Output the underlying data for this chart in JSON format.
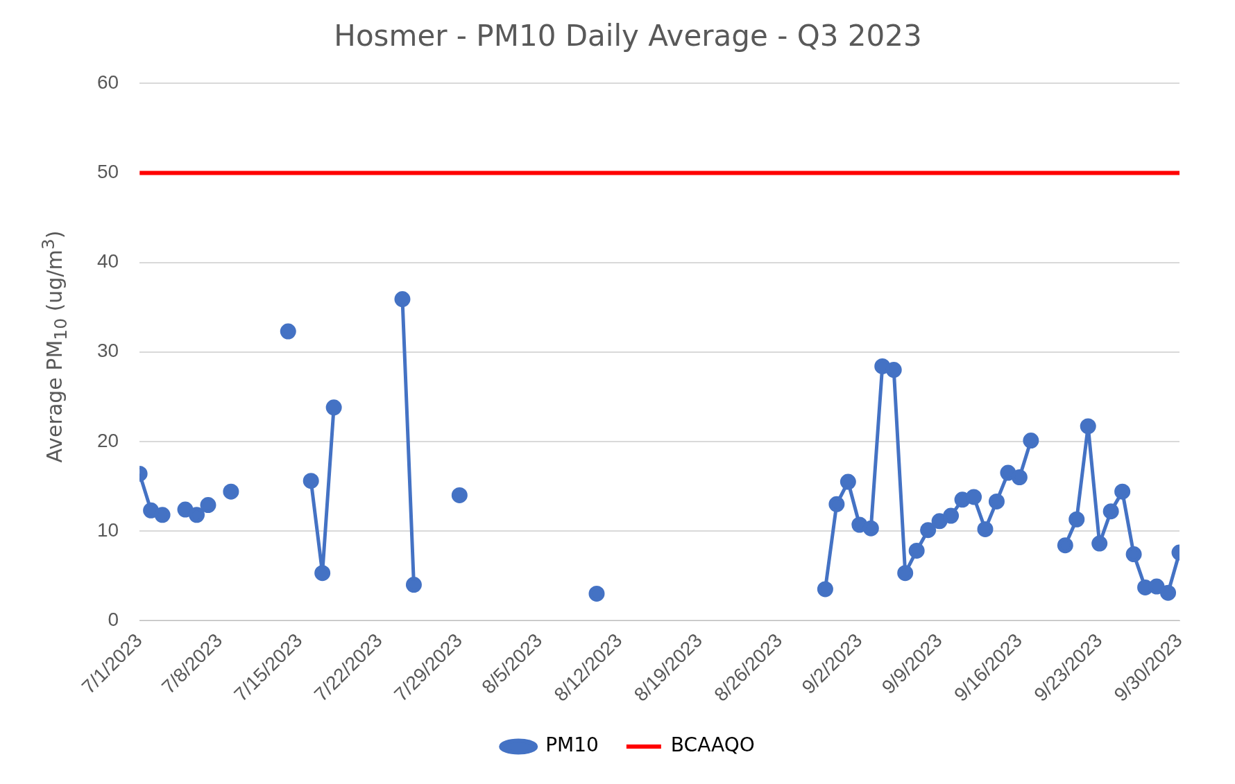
{
  "chart_data": {
    "type": "line",
    "title": "Hosmer - PM10 Daily Average - Q3 2023",
    "ylabel": "Average PM$_{10}$ (ug/m$^{3}$)",
    "x": [
      "2023-07-01",
      "2023-07-02",
      "2023-07-03",
      "2023-07-04",
      "2023-07-05",
      "2023-07-06",
      "2023-07-07",
      "2023-07-08",
      "2023-07-09",
      "2023-07-10",
      "2023-07-11",
      "2023-07-12",
      "2023-07-13",
      "2023-07-14",
      "2023-07-15",
      "2023-07-16",
      "2023-07-17",
      "2023-07-18",
      "2023-07-19",
      "2023-07-20",
      "2023-07-21",
      "2023-07-22",
      "2023-07-23",
      "2023-07-24",
      "2023-07-25",
      "2023-07-26",
      "2023-07-27",
      "2023-07-28",
      "2023-07-29",
      "2023-07-30",
      "2023-07-31",
      "2023-08-01",
      "2023-08-02",
      "2023-08-03",
      "2023-08-04",
      "2023-08-05",
      "2023-08-06",
      "2023-08-07",
      "2023-08-08",
      "2023-08-09",
      "2023-08-10",
      "2023-08-11",
      "2023-08-12",
      "2023-08-13",
      "2023-08-14",
      "2023-08-15",
      "2023-08-16",
      "2023-08-17",
      "2023-08-18",
      "2023-08-19",
      "2023-08-20",
      "2023-08-21",
      "2023-08-22",
      "2023-08-23",
      "2023-08-24",
      "2023-08-25",
      "2023-08-26",
      "2023-08-27",
      "2023-08-28",
      "2023-08-29",
      "2023-08-30",
      "2023-08-31",
      "2023-09-01",
      "2023-09-02",
      "2023-09-03",
      "2023-09-04",
      "2023-09-05",
      "2023-09-06",
      "2023-09-07",
      "2023-09-08",
      "2023-09-09",
      "2023-09-10",
      "2023-09-11",
      "2023-09-12",
      "2023-09-13",
      "2023-09-14",
      "2023-09-15",
      "2023-09-16",
      "2023-09-17",
      "2023-09-18",
      "2023-09-19",
      "2023-09-20",
      "2023-09-21",
      "2023-09-22",
      "2023-09-23",
      "2023-09-24",
      "2023-09-25",
      "2023-09-26",
      "2023-09-27",
      "2023-09-28",
      "2023-09-29",
      "2023-09-30"
    ],
    "series": [
      {
        "name": "PM10",
        "type": "line",
        "color": "#4472c4",
        "marker": "circle",
        "values": [
          16.4,
          12.3,
          11.8,
          null,
          12.4,
          11.8,
          12.9,
          null,
          14.4,
          null,
          null,
          null,
          null,
          32.3,
          null,
          15.6,
          5.3,
          23.8,
          null,
          null,
          null,
          null,
          null,
          35.9,
          4.0,
          null,
          null,
          null,
          14.0,
          null,
          null,
          null,
          null,
          null,
          null,
          null,
          null,
          null,
          null,
          null,
          3.0,
          null,
          null,
          null,
          null,
          null,
          null,
          null,
          null,
          null,
          null,
          null,
          null,
          null,
          null,
          null,
          null,
          null,
          null,
          null,
          3.5,
          13.0,
          15.5,
          10.7,
          10.3,
          28.4,
          28.0,
          5.3,
          7.8,
          10.1,
          11.1,
          11.7,
          13.5,
          13.8,
          10.2,
          13.3,
          16.5,
          16.0,
          20.1,
          null,
          null,
          8.4,
          11.3,
          21.7,
          8.6,
          12.2,
          14.4,
          7.4,
          3.7,
          3.8,
          3.1,
          7.6
        ]
      },
      {
        "name": "BCAAQO",
        "type": "line",
        "color": "#ff0000",
        "marker": "none",
        "x": [
          "2023-07-01",
          "2023-09-30"
        ],
        "values": [
          50,
          50
        ]
      }
    ],
    "xlim": [
      "2023-07-01",
      "2023-09-30"
    ],
    "xticks": [
      {
        "value": "2023-07-01",
        "label": "7/1/2023"
      },
      {
        "value": "2023-07-08",
        "label": "7/8/2023"
      },
      {
        "value": "2023-07-15",
        "label": "7/15/2023"
      },
      {
        "value": "2023-07-22",
        "label": "7/22/2023"
      },
      {
        "value": "2023-07-29",
        "label": "7/29/2023"
      },
      {
        "value": "2023-08-05",
        "label": "8/5/2023"
      },
      {
        "value": "2023-08-12",
        "label": "8/12/2023"
      },
      {
        "value": "2023-08-19",
        "label": "8/19/2023"
      },
      {
        "value": "2023-08-26",
        "label": "8/26/2023"
      },
      {
        "value": "2023-09-02",
        "label": "9/2/2023"
      },
      {
        "value": "2023-09-09",
        "label": "9/9/2023"
      },
      {
        "value": "2023-09-16",
        "label": "9/16/2023"
      },
      {
        "value": "2023-09-23",
        "label": "9/23/2023"
      },
      {
        "value": "2023-09-30",
        "label": "9/30/2023"
      }
    ],
    "ylim": [
      0,
      60
    ],
    "yticks": [
      0,
      10,
      20,
      30,
      40,
      50,
      60
    ],
    "grid": "y",
    "legend": "bottom"
  }
}
